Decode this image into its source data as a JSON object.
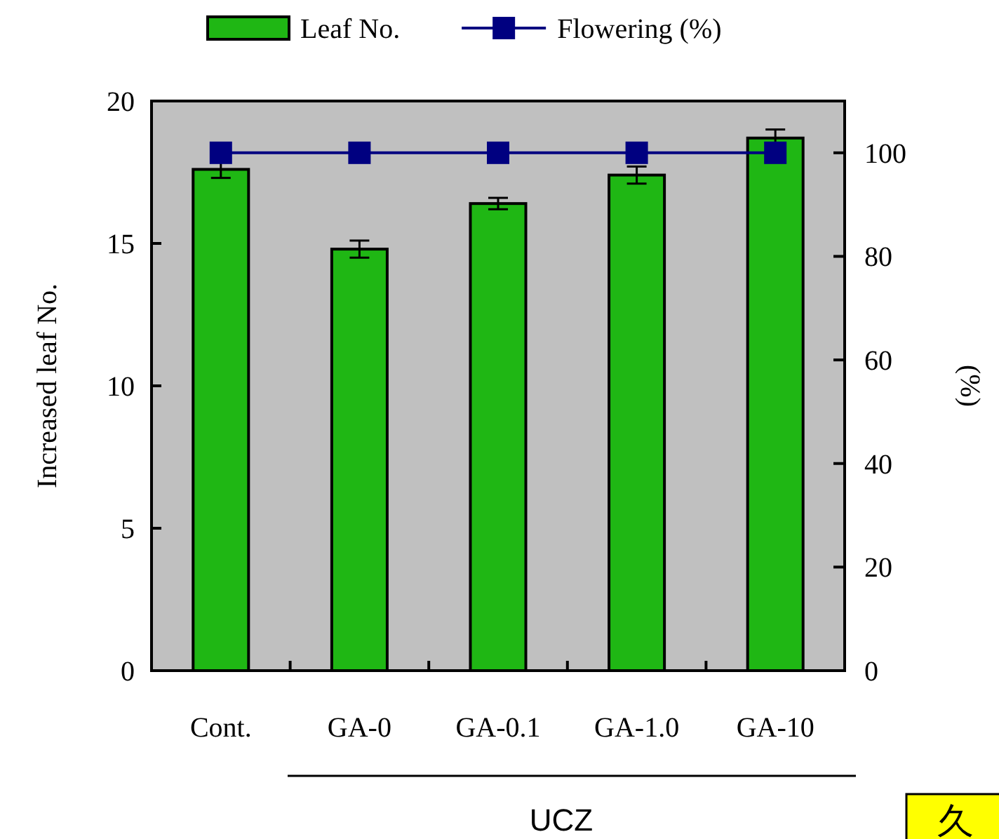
{
  "chart_data": {
    "type": "bar",
    "categories": [
      "Cont.",
      "GA-0",
      "GA-0.1",
      "GA-1.0",
      "GA-10"
    ],
    "series": [
      {
        "name": "Leaf No.",
        "color": "#1fb714",
        "values": [
          17.6,
          14.8,
          16.4,
          17.4,
          18.7
        ],
        "errors": [
          0.3,
          0.3,
          0.2,
          0.3,
          0.3
        ]
      },
      {
        "name": "Flowering (%)",
        "type": "line",
        "axis": "y2",
        "color": "#000080",
        "marker": "square",
        "values": [
          100,
          100,
          100,
          100,
          100
        ]
      }
    ],
    "ylabel": "Increased leaf No.",
    "y2label": "(%)",
    "ylim": [
      0,
      20
    ],
    "yticks": [
      0,
      5,
      10,
      15,
      20
    ],
    "y2lim": [
      0,
      110
    ],
    "y2ticks": [
      0,
      20,
      40,
      60,
      80,
      100
    ],
    "legend": "top",
    "annotations": [
      "UCZ",
      "久"
    ]
  }
}
